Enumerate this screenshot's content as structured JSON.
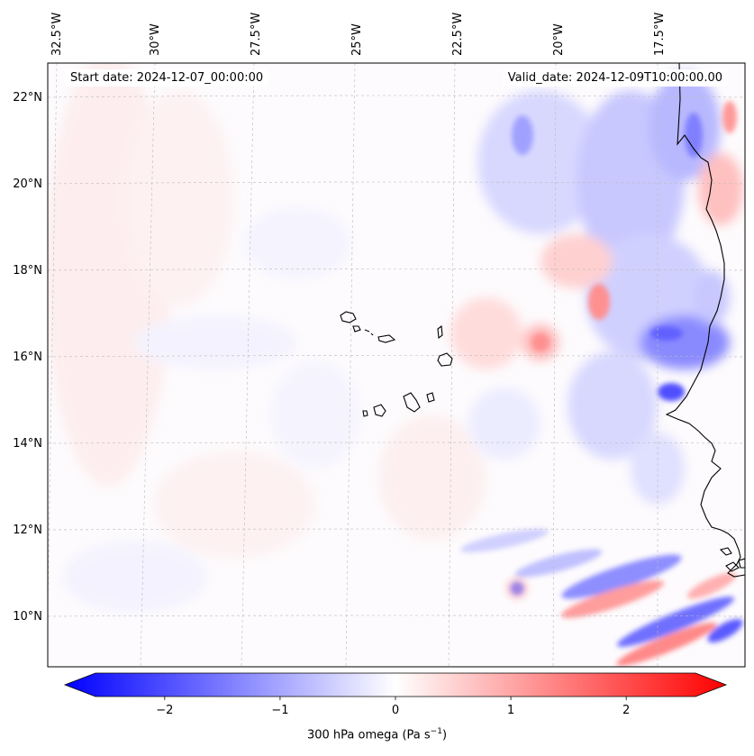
{
  "header": {
    "start_label": "Start date: 2024-12-07_00:00:00",
    "valid_label": "Valid_date: 2024-12-09T10:00:00.00"
  },
  "lon_labels": [
    "32.5°W",
    "30°W",
    "27.5°W",
    "25°W",
    "22.5°W",
    "20°W",
    "17.5°W"
  ],
  "lat_labels": [
    "22°N",
    "20°N",
    "18°N",
    "16°N",
    "14°N",
    "12°N",
    "10°N"
  ],
  "colorbar": {
    "min": -2.6,
    "max": 2.6,
    "ticks": [
      -2,
      -1,
      0,
      1,
      2
    ],
    "tick_labels": [
      "−2",
      "−1",
      "0",
      "1",
      "2"
    ],
    "label_main": "300 hPa omega (Pa s",
    "label_exp": "−1",
    "label_close": ")",
    "colormap": "bwr",
    "low_color": "#0000ff",
    "mid_color": "#ffffff",
    "high_color": "#ff0000"
  },
  "colors": {
    "coastline": "#000000",
    "gridline": "#bbbbbb"
  }
}
